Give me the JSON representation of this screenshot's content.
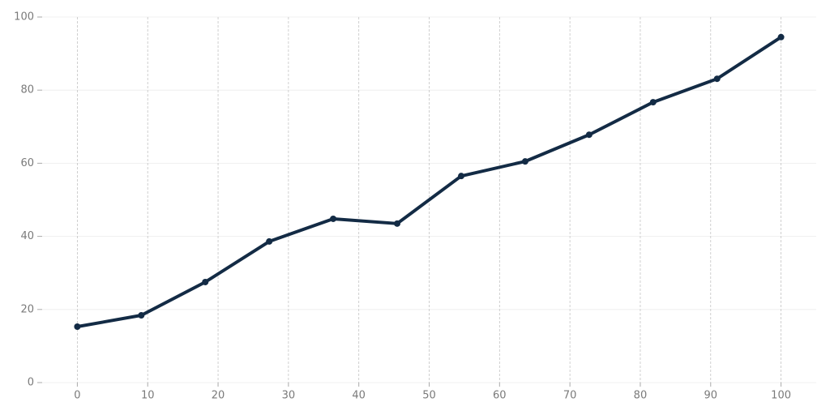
{
  "chart_data": {
    "type": "line",
    "x": [
      0,
      9.09,
      18.18,
      27.27,
      36.36,
      45.45,
      54.55,
      63.64,
      72.73,
      81.82,
      90.91,
      100
    ],
    "series": [
      {
        "color": "#132b45",
        "values": [
          15.3,
          18.4,
          27.5,
          38.6,
          44.8,
          43.5,
          56.5,
          60.5,
          67.8,
          76.7,
          83.1,
          94.5
        ]
      }
    ],
    "xlim": [
      -5,
      105
    ],
    "xticks": [
      0,
      10,
      20,
      30,
      40,
      50,
      60,
      70,
      80,
      90,
      100
    ],
    "ylim": [
      0,
      100
    ],
    "yticks": [
      0,
      20,
      40,
      60,
      80,
      100
    ],
    "grid": true
  }
}
